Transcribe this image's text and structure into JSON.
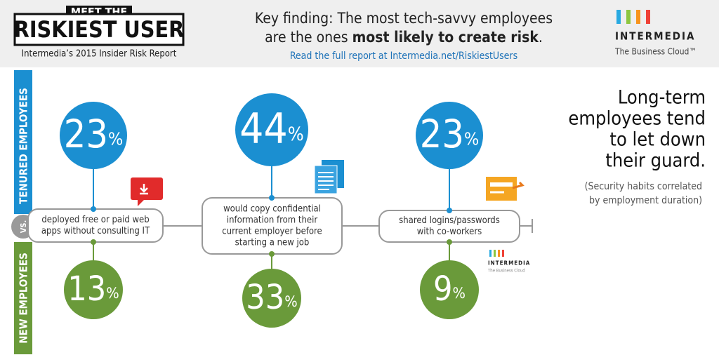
{
  "header": {
    "badge_top": "MEET THE",
    "badge_title": "RISKIEST USER",
    "badge_subtitle": "Intermedia’s 2015 Insider Risk Report",
    "finding_line1": "Key finding: The most tech-savvy employees",
    "finding_line2_start": "are the ones ",
    "finding_line2_bold": "most likely to create risk",
    "finding_line2_end": ".",
    "link": "Read the full report at Intermedia.net/RiskiestUsers",
    "logo_name": "INTERMEDIA",
    "logo_tagline": "The Business Cloud™"
  },
  "groups": {
    "tenured": "TENURED EMPLOYEES",
    "new": "NEW EMPLOYEES",
    "vs": "VS."
  },
  "percent_sign": "%",
  "findings": [
    {
      "behavior_lines": [
        "deployed free or paid web",
        "apps without consulting IT"
      ],
      "tenured": 23,
      "new": 13
    },
    {
      "behavior_lines": [
        "would copy confidential",
        "information from their",
        "current employer before",
        "starting a new job"
      ],
      "tenured": 44,
      "new": 33
    },
    {
      "behavior_lines": [
        "shared logins/passwords",
        "with co-workers"
      ],
      "tenured": 23,
      "new": 9
    }
  ],
  "sidebar": {
    "headline_lines": [
      "Long-term",
      "employees tend",
      "to let down",
      "their guard."
    ],
    "note_lines": [
      "(Security habits correlated",
      "by employment duration)"
    ]
  },
  "footer_logo": {
    "name": "INTERMEDIA",
    "tagline": "The Business Cloud"
  }
}
